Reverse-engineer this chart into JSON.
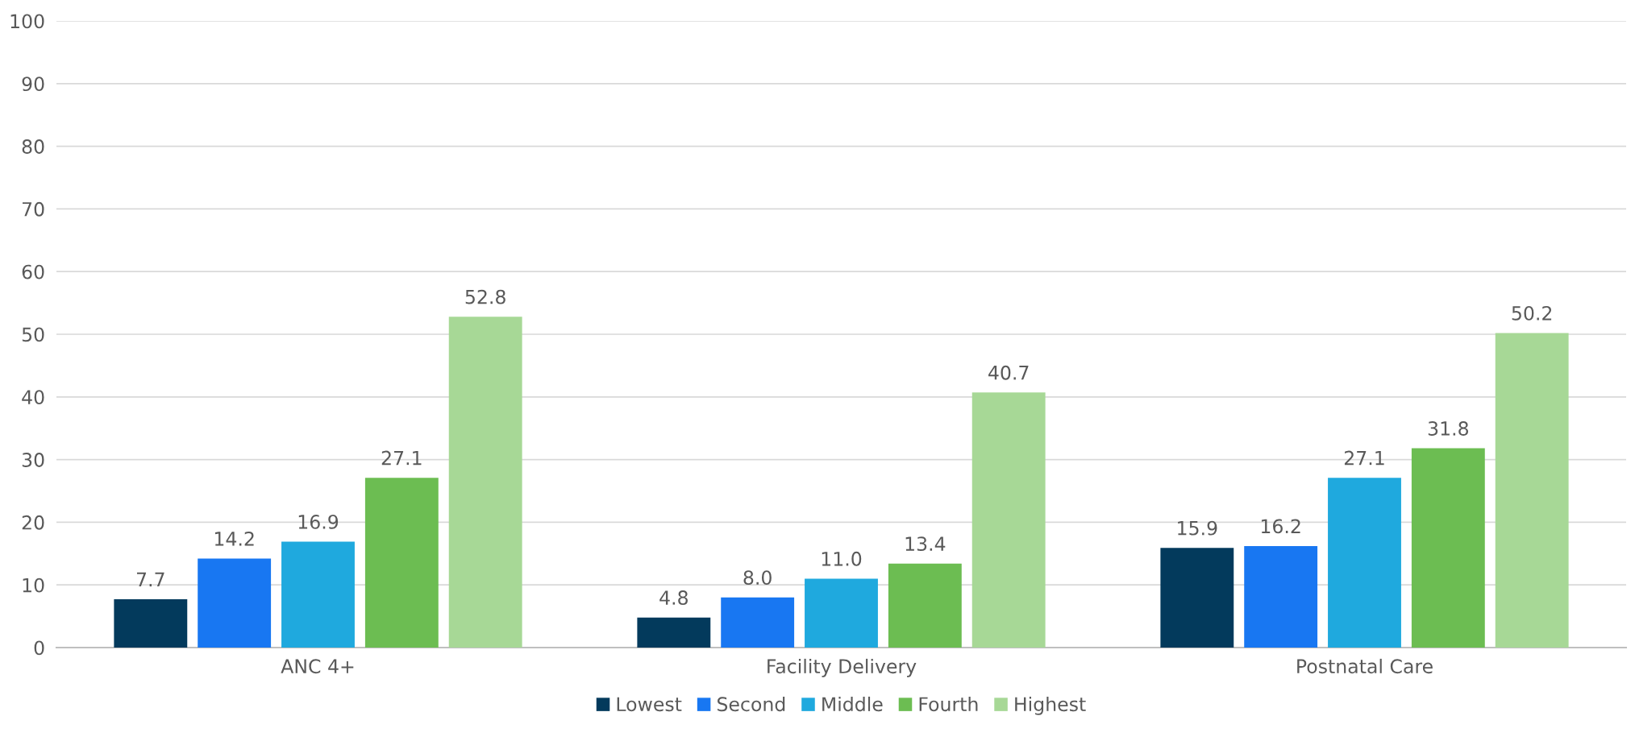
{
  "chart_data": {
    "type": "bar",
    "categories": [
      "ANC 4+",
      "Facility Delivery",
      "Postnatal Care"
    ],
    "series": [
      {
        "name": "Lowest",
        "color": "#033a5c",
        "values": [
          7.7,
          4.8,
          15.9
        ],
        "value_labels": [
          "7.7",
          "4.8",
          "15.9"
        ]
      },
      {
        "name": "Second",
        "color": "#1877f2",
        "values": [
          14.2,
          8.0,
          16.2
        ],
        "value_labels": [
          "14.2",
          "8.0",
          "16.2"
        ]
      },
      {
        "name": "Middle",
        "color": "#1fa9de",
        "values": [
          16.9,
          11.0,
          27.1
        ],
        "value_labels": [
          "16.9",
          "11.0",
          "27.1"
        ]
      },
      {
        "name": "Fourth",
        "color": "#6cbd52",
        "values": [
          27.1,
          13.4,
          31.8
        ],
        "value_labels": [
          "27.1",
          "13.4",
          "31.8"
        ]
      },
      {
        "name": "Highest",
        "color": "#a7d896",
        "values": [
          52.8,
          40.7,
          50.2
        ],
        "value_labels": [
          "52.8",
          "40.7",
          "50.2"
        ]
      }
    ],
    "ylim": [
      0,
      100
    ],
    "yticks": [
      0,
      10,
      20,
      30,
      40,
      50,
      60,
      70,
      80,
      90,
      100
    ],
    "grid": "y",
    "legend": "bottom"
  }
}
